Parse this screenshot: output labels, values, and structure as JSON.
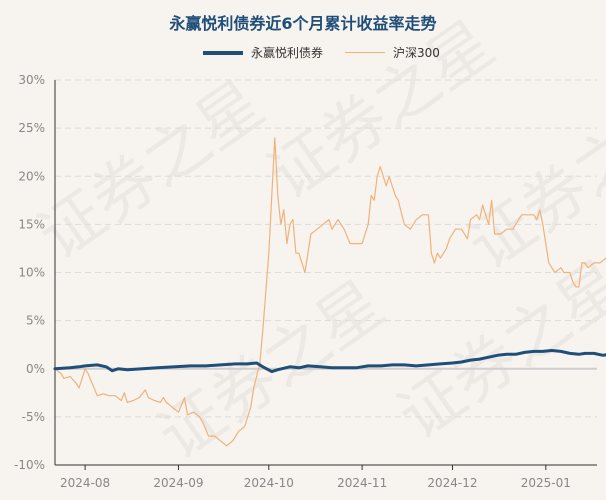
{
  "chart_data": {
    "type": "line",
    "title": "永赢悦利债券近6个月累计收益率走势",
    "xlabel": "",
    "ylabel": "",
    "ylim": [
      -10,
      30
    ],
    "yticks": [
      -10,
      -5,
      0,
      5,
      10,
      15,
      20,
      25,
      30
    ],
    "ytick_labels": [
      "-10%",
      "-5%",
      "0%",
      "5%",
      "10%",
      "15%",
      "20%",
      "25%",
      "30%"
    ],
    "xlim": [
      0,
      180
    ],
    "xticks": [
      {
        "label": "2024-08",
        "x": 10
      },
      {
        "label": "2024-09",
        "x": 41
      },
      {
        "label": "2024-10",
        "x": 71
      },
      {
        "label": "2024-11",
        "x": 102
      },
      {
        "label": "2024-12",
        "x": 132
      },
      {
        "label": "2025-01",
        "x": 163
      }
    ],
    "grid": true,
    "legend_position": "top-center",
    "watermark_text": "证券之星",
    "series": [
      {
        "name": "永赢悦利债券",
        "color": "#1f4e79",
        "points": [
          [
            0,
            0
          ],
          [
            5,
            0.1
          ],
          [
            8,
            0.2
          ],
          [
            10,
            0.3
          ],
          [
            14,
            0.4
          ],
          [
            17,
            0.2
          ],
          [
            19,
            -0.2
          ],
          [
            21,
            0
          ],
          [
            24,
            -0.1
          ],
          [
            29,
            0
          ],
          [
            34,
            0.1
          ],
          [
            40,
            0.2
          ],
          [
            45,
            0.3
          ],
          [
            50,
            0.3
          ],
          [
            55,
            0.4
          ],
          [
            60,
            0.5
          ],
          [
            64,
            0.5
          ],
          [
            67,
            0.6
          ],
          [
            69,
            0.2
          ],
          [
            72,
            -0.3
          ],
          [
            74,
            -0.1
          ],
          [
            78,
            0.2
          ],
          [
            81,
            0.1
          ],
          [
            84,
            0.3
          ],
          [
            88,
            0.2
          ],
          [
            92,
            0.1
          ],
          [
            96,
            0.1
          ],
          [
            100,
            0.1
          ],
          [
            104,
            0.3
          ],
          [
            108,
            0.3
          ],
          [
            112,
            0.4
          ],
          [
            116,
            0.4
          ],
          [
            120,
            0.3
          ],
          [
            124,
            0.4
          ],
          [
            128,
            0.5
          ],
          [
            132,
            0.6
          ],
          [
            135,
            0.7
          ],
          [
            138,
            0.9
          ],
          [
            141,
            1.0
          ],
          [
            144,
            1.2
          ],
          [
            147,
            1.4
          ],
          [
            150,
            1.5
          ],
          [
            153,
            1.5
          ],
          [
            156,
            1.7
          ],
          [
            159,
            1.8
          ],
          [
            162,
            1.8
          ],
          [
            165,
            1.9
          ],
          [
            168,
            1.8
          ],
          [
            171,
            1.6
          ],
          [
            174,
            1.5
          ],
          [
            176,
            1.6
          ],
          [
            179,
            1.6
          ],
          [
            182,
            1.4
          ],
          [
            184,
            1.5
          ],
          [
            186,
            1.6
          ],
          [
            188,
            1.5
          ]
        ]
      },
      {
        "name": "沪深300",
        "color": "#f0b27a",
        "points": [
          [
            0,
            0
          ],
          [
            2,
            -0.5
          ],
          [
            3,
            -1
          ],
          [
            5,
            -0.8
          ],
          [
            7,
            -1.5
          ],
          [
            8,
            -2
          ],
          [
            10,
            0
          ],
          [
            11,
            -0.5
          ],
          [
            13,
            -2
          ],
          [
            14,
            -2.8
          ],
          [
            16,
            -2.6
          ],
          [
            18,
            -2.8
          ],
          [
            20,
            -2.8
          ],
          [
            22,
            -3.3
          ],
          [
            23,
            -2.5
          ],
          [
            24,
            -3.5
          ],
          [
            26,
            -3.3
          ],
          [
            28,
            -3
          ],
          [
            30,
            -2.2
          ],
          [
            31,
            -3
          ],
          [
            33,
            -3.3
          ],
          [
            35,
            -3.5
          ],
          [
            36,
            -3
          ],
          [
            37,
            -3.5
          ],
          [
            39,
            -4
          ],
          [
            41,
            -4.5
          ],
          [
            43,
            -3
          ],
          [
            44,
            -4.8
          ],
          [
            46,
            -4.5
          ],
          [
            48,
            -5
          ],
          [
            49,
            -5.5
          ],
          [
            51,
            -7
          ],
          [
            53,
            -7
          ],
          [
            55,
            -7.5
          ],
          [
            57,
            -8
          ],
          [
            59,
            -7.5
          ],
          [
            61,
            -6.5
          ],
          [
            63,
            -6
          ],
          [
            65,
            -4
          ],
          [
            66,
            -2
          ],
          [
            68,
            0.5
          ],
          [
            69,
            4
          ],
          [
            70,
            8
          ],
          [
            71,
            12
          ],
          [
            72,
            18
          ],
          [
            73,
            24
          ],
          [
            74,
            18
          ],
          [
            75,
            15
          ],
          [
            76,
            16.5
          ],
          [
            77,
            13
          ],
          [
            78,
            15
          ],
          [
            79,
            15.5
          ],
          [
            80,
            12
          ],
          [
            81,
            12
          ],
          [
            82,
            11
          ],
          [
            83,
            10
          ],
          [
            84,
            12
          ],
          [
            85,
            14
          ],
          [
            87,
            14.5
          ],
          [
            89,
            15
          ],
          [
            91,
            15.5
          ],
          [
            92,
            14.5
          ],
          [
            94,
            15.5
          ],
          [
            96,
            14.5
          ],
          [
            98,
            13
          ],
          [
            100,
            13
          ],
          [
            102,
            13
          ],
          [
            104,
            15
          ],
          [
            105,
            18
          ],
          [
            106,
            17.5
          ],
          [
            107,
            20
          ],
          [
            108,
            21
          ],
          [
            109,
            20
          ],
          [
            110,
            19
          ],
          [
            111,
            20
          ],
          [
            112,
            19
          ],
          [
            113,
            18
          ],
          [
            114,
            17.5
          ],
          [
            116,
            15
          ],
          [
            118,
            14.5
          ],
          [
            120,
            15.5
          ],
          [
            122,
            16
          ],
          [
            124,
            16
          ],
          [
            125,
            12
          ],
          [
            126,
            11
          ],
          [
            127,
            12
          ],
          [
            128,
            11.5
          ],
          [
            130,
            12.5
          ],
          [
            131,
            13.5
          ],
          [
            133,
            14.5
          ],
          [
            135,
            14.5
          ],
          [
            136,
            14
          ],
          [
            137,
            13.5
          ],
          [
            138,
            15.5
          ],
          [
            140,
            16
          ],
          [
            141,
            15.5
          ],
          [
            142,
            17
          ],
          [
            143,
            16
          ],
          [
            144,
            15
          ],
          [
            145,
            17.5
          ],
          [
            146,
            14
          ],
          [
            148,
            14
          ],
          [
            150,
            14.5
          ],
          [
            152,
            14.5
          ],
          [
            154,
            15.5
          ],
          [
            155,
            16
          ],
          [
            157,
            16
          ],
          [
            159,
            16
          ],
          [
            160,
            15.5
          ],
          [
            161,
            16.5
          ],
          [
            162,
            15
          ],
          [
            163,
            13
          ],
          [
            164,
            11
          ],
          [
            165,
            10.5
          ],
          [
            166,
            10
          ],
          [
            168,
            10.5
          ],
          [
            169,
            10
          ],
          [
            171,
            10
          ],
          [
            172,
            9
          ],
          [
            173,
            8.5
          ],
          [
            174,
            8.5
          ],
          [
            175,
            11
          ],
          [
            176,
            11
          ],
          [
            177,
            10.5
          ],
          [
            179,
            11
          ],
          [
            181,
            11
          ],
          [
            183,
            11.5
          ],
          [
            184,
            11
          ],
          [
            186,
            10.5
          ],
          [
            188,
            10.5
          ]
        ]
      }
    ]
  }
}
